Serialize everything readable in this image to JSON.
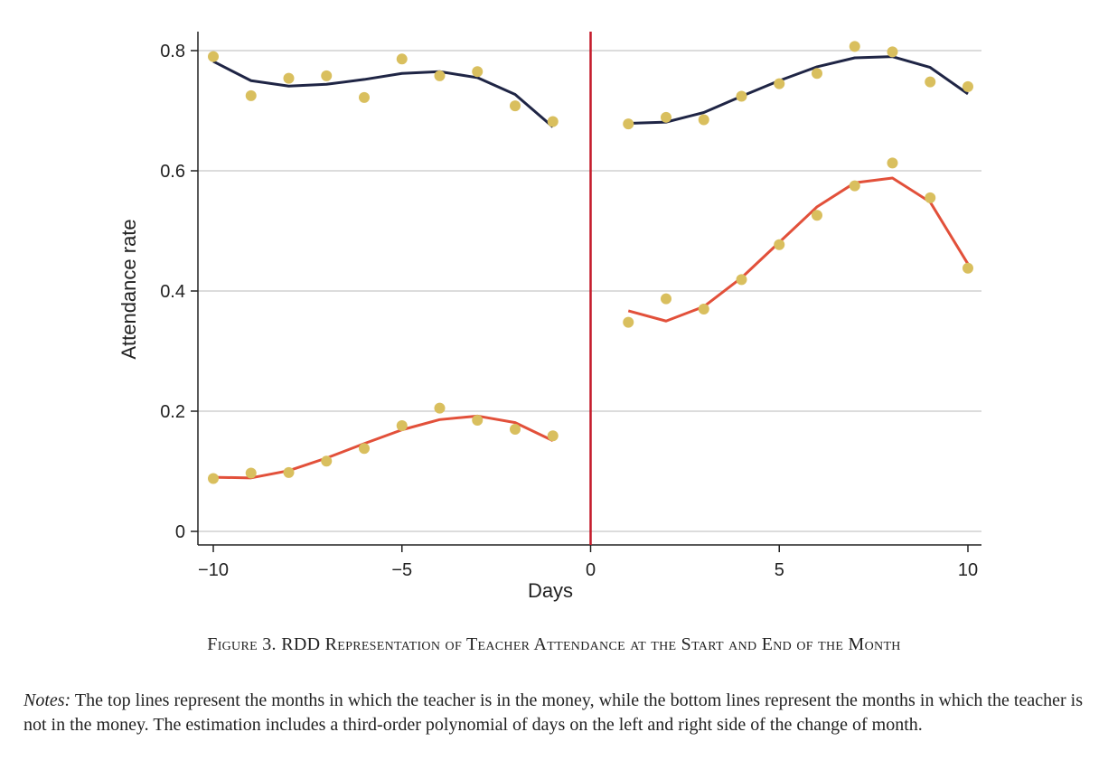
{
  "chart_data": {
    "type": "scatter",
    "xlabel": "Days",
    "ylabel": "Attendance rate",
    "xlim": [
      -10,
      10
    ],
    "ylim": [
      0,
      0.83
    ],
    "xticks": [
      -10,
      -5,
      0,
      5,
      10
    ],
    "xtick_labels": [
      "−10",
      "−5",
      "0",
      "5",
      "10"
    ],
    "yticks": [
      0,
      0.2,
      0.4,
      0.6,
      0.8
    ],
    "ytick_labels": [
      "0",
      "0.2",
      "0.4",
      "0.6",
      "0.8"
    ],
    "grid": "horizontal",
    "cutoff_x": 0,
    "colors": {
      "points": "#d9bf5e",
      "top_line": "#1f2545",
      "bottom_line": "#e2503a",
      "cutoff": "#c41a2a",
      "grid": "#c8c8c8"
    },
    "series": [
      {
        "kind": "points",
        "x": [
          -10,
          -9,
          -8,
          -7,
          -6,
          -5,
          -4,
          -3,
          -2,
          -1,
          1,
          2,
          3,
          4,
          5,
          6,
          7,
          8,
          9,
          10
        ],
        "y": [
          0.79,
          0.725,
          0.754,
          0.758,
          0.722,
          0.786,
          0.758,
          0.765,
          0.708,
          0.682,
          0.678,
          0.689,
          0.685,
          0.724,
          0.745,
          0.762,
          0.807,
          0.798,
          0.748,
          0.74
        ]
      },
      {
        "kind": "points",
        "x": [
          -10,
          -9,
          -8,
          -7,
          -6,
          -5,
          -4,
          -3,
          -2,
          -1,
          1,
          2,
          3,
          4,
          5,
          6,
          7,
          8,
          9,
          10
        ],
        "y": [
          0.088,
          0.097,
          0.098,
          0.117,
          0.138,
          0.176,
          0.205,
          0.185,
          0.17,
          0.159,
          0.348,
          0.387,
          0.37,
          0.419,
          0.477,
          0.526,
          0.575,
          0.613,
          0.555,
          0.438
        ]
      },
      {
        "kind": "line",
        "color_key": "top_line",
        "x": [
          -10,
          -9,
          -8,
          -7,
          -6,
          -5,
          -4,
          -3,
          -2,
          -1
        ],
        "y": [
          0.782,
          0.75,
          0.741,
          0.744,
          0.752,
          0.762,
          0.765,
          0.755,
          0.727,
          0.673
        ]
      },
      {
        "kind": "line",
        "color_key": "top_line",
        "x": [
          1,
          2,
          3,
          4,
          5,
          6,
          7,
          8,
          9,
          10
        ],
        "y": [
          0.679,
          0.681,
          0.697,
          0.724,
          0.75,
          0.773,
          0.788,
          0.79,
          0.772,
          0.728
        ]
      },
      {
        "kind": "line",
        "color_key": "bottom_line",
        "x": [
          -10,
          -9,
          -8,
          -7,
          -6,
          -5,
          -4,
          -3,
          -2,
          -1
        ],
        "y": [
          0.09,
          0.089,
          0.101,
          0.122,
          0.146,
          0.169,
          0.186,
          0.192,
          0.181,
          0.151
        ]
      },
      {
        "kind": "line",
        "color_key": "bottom_line",
        "x": [
          1,
          2,
          3,
          4,
          5,
          6,
          7,
          8,
          9,
          10
        ],
        "y": [
          0.367,
          0.35,
          0.374,
          0.422,
          0.481,
          0.54,
          0.58,
          0.588,
          0.548,
          0.445
        ]
      }
    ]
  },
  "caption": {
    "figure_label": "Figure 3.",
    "title": "RDD Representation of Teacher Attendance at the Start and End of the Month"
  },
  "notes": {
    "label": "Notes:",
    "text": "The top lines represent the months in which the teacher is in the money, while the bottom lines represent the months in which the teacher is not in the money. The estimation includes a third-order polynomial of days on the left and right side of the change of month."
  }
}
